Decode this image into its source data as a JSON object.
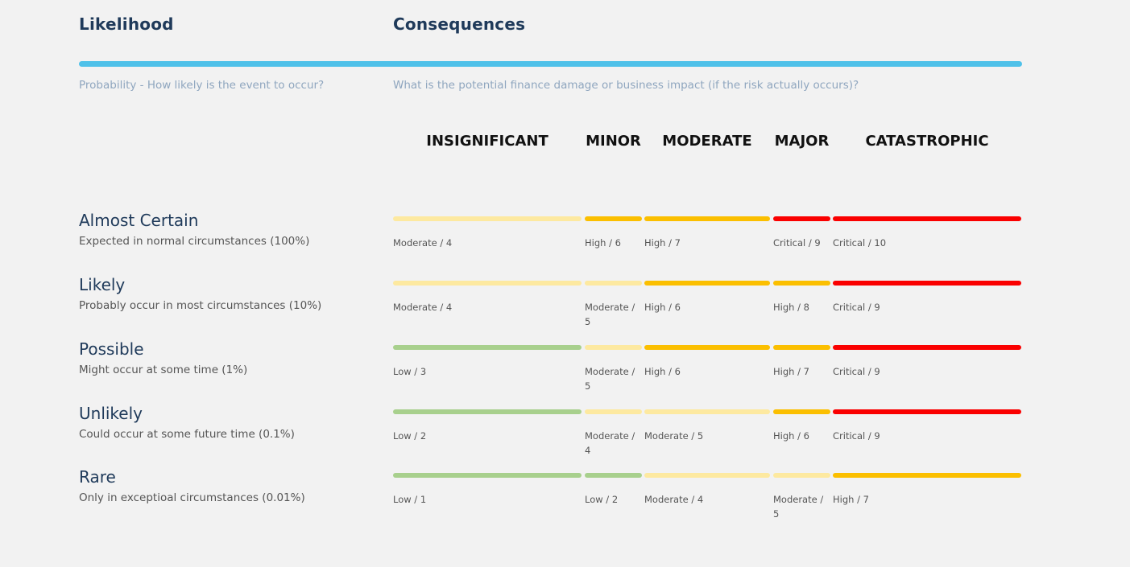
{
  "header": {
    "likelihood_title": "Likelihood",
    "consequences_title": "Consequences",
    "likelihood_subtitle": "Probability - How likely is the event to occur?",
    "consequences_subtitle": "What is the potential finance damage or business impact (if the risk actually occurs)?"
  },
  "colors": {
    "accent": "#4fc1e9",
    "low": "#a8d08d",
    "moderate": "#fde9a0",
    "high": "#fbbf00",
    "critical": "#fa0000"
  },
  "columns": [
    {
      "label": "INSIGNIFICANT"
    },
    {
      "label": "MINOR"
    },
    {
      "label": "MODERATE"
    },
    {
      "label": "MAJOR"
    },
    {
      "label": "CATASTROPHIC"
    }
  ],
  "rows": [
    {
      "title": "Almost Certain",
      "description": "Expected in normal circumstances (100%)",
      "cells": [
        {
          "label": "Moderate / 4",
          "level": "moderate"
        },
        {
          "label": "High / 6",
          "level": "high"
        },
        {
          "label": "High / 7",
          "level": "high"
        },
        {
          "label": "Critical / 9",
          "level": "critical"
        },
        {
          "label": "Critical / 10",
          "level": "critical"
        }
      ]
    },
    {
      "title": "Likely",
      "description": "Probably occur in most circumstances (10%)",
      "cells": [
        {
          "label": "Moderate / 4",
          "level": "moderate"
        },
        {
          "label": "Moderate / 5",
          "level": "moderate"
        },
        {
          "label": "High / 6",
          "level": "high"
        },
        {
          "label": "High / 8",
          "level": "high"
        },
        {
          "label": "Critical / 9",
          "level": "critical"
        }
      ]
    },
    {
      "title": "Possible",
      "description": "Might occur at some time (1%)",
      "cells": [
        {
          "label": "Low / 3",
          "level": "low"
        },
        {
          "label": "Moderate / 5",
          "level": "moderate"
        },
        {
          "label": "High / 6",
          "level": "high"
        },
        {
          "label": "High / 7",
          "level": "high"
        },
        {
          "label": "Critical / 9",
          "level": "critical"
        }
      ]
    },
    {
      "title": "Unlikely",
      "description": "Could occur at some future time (0.1%)",
      "cells": [
        {
          "label": "Low / 2",
          "level": "low"
        },
        {
          "label": "Moderate / 4",
          "level": "moderate"
        },
        {
          "label": "Moderate / 5",
          "level": "moderate"
        },
        {
          "label": "High / 6",
          "level": "high"
        },
        {
          "label": "Critical / 9",
          "level": "critical"
        }
      ]
    },
    {
      "title": "Rare",
      "description": "Only in exceptioal circumstances (0.01%)",
      "cells": [
        {
          "label": "Low / 1",
          "level": "low"
        },
        {
          "label": "Low / 2",
          "level": "low"
        },
        {
          "label": "Moderate / 4",
          "level": "moderate"
        },
        {
          "label": "Moderate / 5",
          "level": "moderate"
        },
        {
          "label": "High / 7",
          "level": "high"
        }
      ]
    }
  ]
}
